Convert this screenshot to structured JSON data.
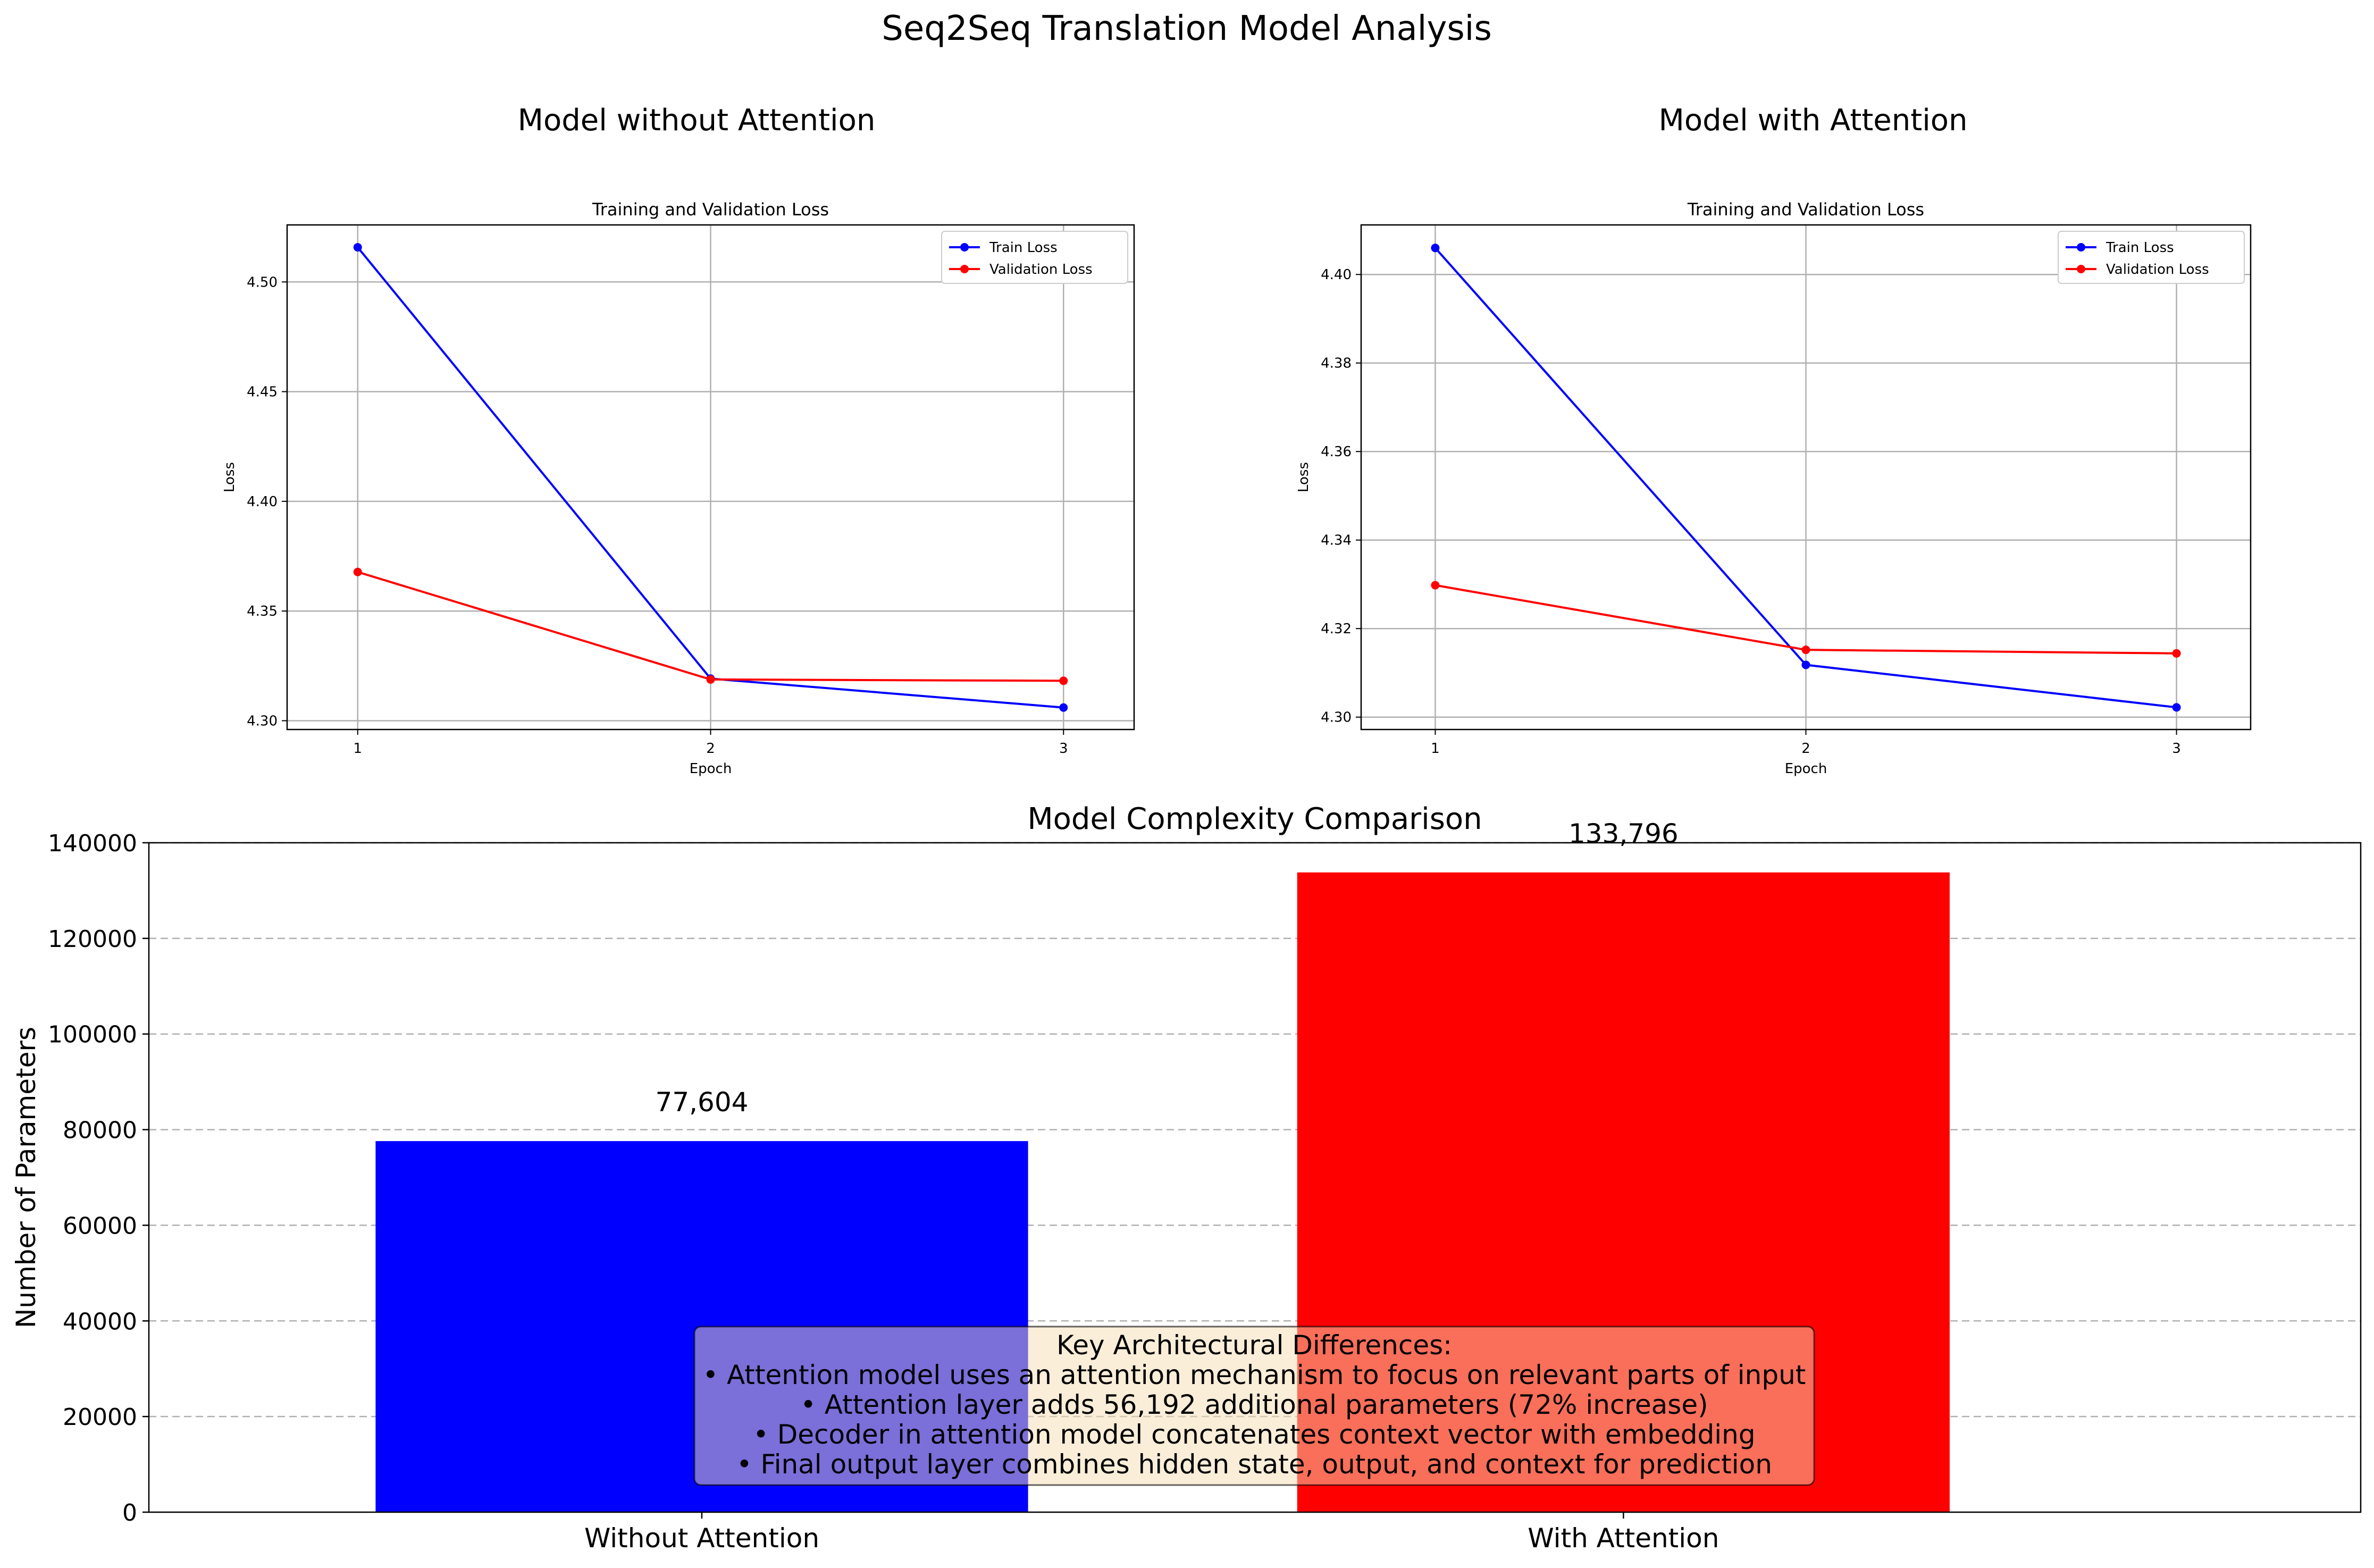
{
  "figure": {
    "title": "Seq2Seq Translation Model Analysis"
  },
  "panels": {
    "left": {
      "title": "Model without Attention"
    },
    "right": {
      "title": "Model with Attention"
    }
  },
  "note": {
    "lines": [
      "Key Architectural Differences:",
      "• Attention model uses an attention mechanism to focus on relevant parts of input",
      "• Attention layer adds 56,192 additional parameters (72% increase)",
      "• Decoder in attention model concatenates context vector with embedding",
      "• Final output layer combines hidden state, output, and context for prediction"
    ]
  },
  "colors": {
    "train": "#0000ff",
    "validation": "#ff0000",
    "bar1": "#0000ff",
    "bar2": "#ff0000"
  },
  "chart_data": [
    {
      "type": "line",
      "title": "Training and Validation Loss",
      "xlabel": "Epoch",
      "ylabel": "Loss",
      "x": [
        1,
        2,
        3
      ],
      "xticks": [
        "1",
        "2",
        "3"
      ],
      "yticks": [
        "4.30",
        "4.35",
        "4.40",
        "4.45",
        "4.50"
      ],
      "ylim": [
        4.296,
        4.526
      ],
      "grid": true,
      "legend_position": "top-right",
      "series": [
        {
          "name": "Train Loss",
          "color": "#0000ff",
          "values": [
            4.5158,
            4.3192,
            4.306
          ]
        },
        {
          "name": "Validation Loss",
          "color": "#ff0000",
          "values": [
            4.3678,
            4.3188,
            4.3182
          ]
        }
      ]
    },
    {
      "type": "line",
      "title": "Training and Validation Loss",
      "xlabel": "Epoch",
      "ylabel": "Loss",
      "x": [
        1,
        2,
        3
      ],
      "xticks": [
        "1",
        "2",
        "3"
      ],
      "yticks": [
        "4.30",
        "4.32",
        "4.34",
        "4.36",
        "4.38",
        "4.40"
      ],
      "ylim": [
        4.2972,
        4.4112
      ],
      "grid": true,
      "legend_position": "top-right",
      "series": [
        {
          "name": "Train Loss",
          "color": "#0000ff",
          "values": [
            4.406,
            4.3118,
            4.3022
          ]
        },
        {
          "name": "Validation Loss",
          "color": "#ff0000",
          "values": [
            4.3298,
            4.3152,
            4.3144
          ]
        }
      ]
    },
    {
      "type": "bar",
      "title": "Model Complexity Comparison",
      "xlabel": "",
      "ylabel": "Number of Parameters",
      "categories": [
        "Without Attention",
        "With Attention"
      ],
      "values": [
        77604,
        133796
      ],
      "value_labels": [
        "77,604",
        "133,796"
      ],
      "colors": [
        "#0000ff",
        "#ff0000"
      ],
      "yticks": [
        "0",
        "20000",
        "40000",
        "60000",
        "80000",
        "100000",
        "120000",
        "140000"
      ],
      "ylim": [
        0,
        140000
      ],
      "grid": "y-dashed"
    }
  ]
}
